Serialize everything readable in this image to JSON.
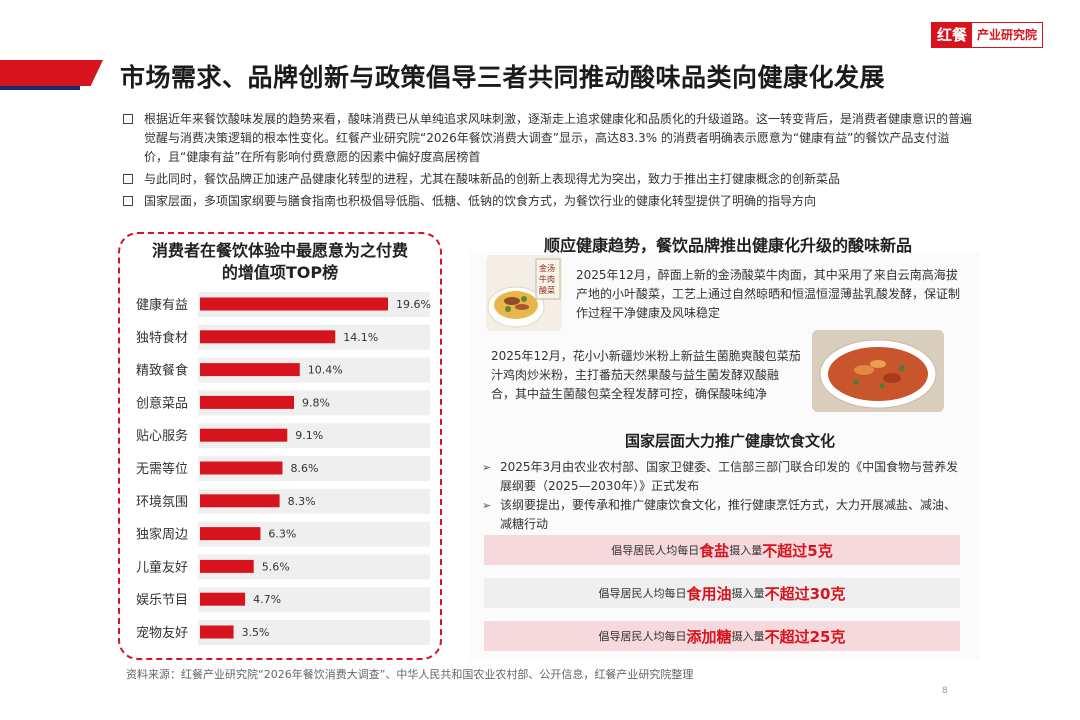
{
  "brand": {
    "logo_main": "红餐",
    "logo_sub": "产业研究院"
  },
  "page_title": "市场需求、品牌创新与政策倡导三者共同推动酸味品类向健康化发展",
  "bullets": [
    "根据近年来餐饮酸味发展的趋势来看，酸味消费已从单纯追求风味刺激，逐渐走上追求健康化和品质化的升级道路。这一转变背后，是消费者健康意识的普遍觉醒与消费决策逻辑的根本性变化。红餐产业研究院“2026年餐饮消费大调查”显示，高达83.3% 的消费者明确表示愿意为“健康有益”的餐饮产品支付溢价，且“健康有益”在所有影响付费意愿的因素中偏好度高居榜首",
    "与此同时，餐饮品牌正加速产品健康化转型的进程，尤其在酸味新品的创新上表现得尤为突出，致力于推出主打健康概念的创新菜品",
    "国家层面，多项国家纲要与膳食指南也积极倡导低脂、低糖、低钠的饮食方式，为餐饮行业的健康化转型提供了明确的指导方向"
  ],
  "chart_data": {
    "type": "bar",
    "orientation": "horizontal",
    "title": "消费者在餐饮体验中最愿意为之付费的增值项TOP榜",
    "title_line1": "消费者在餐饮体验中最愿意为之付费",
    "title_line2": "的增值项TOP榜",
    "categories": [
      "健康有益",
      "独特食材",
      "精致餐食",
      "创意菜品",
      "贴心服务",
      "无需等位",
      "环境氛围",
      "独家周边",
      "儿童友好",
      "娱乐节目",
      "宠物友好"
    ],
    "values": [
      19.6,
      14.1,
      10.4,
      9.8,
      9.1,
      8.6,
      8.3,
      6.3,
      5.6,
      4.7,
      3.5
    ],
    "value_labels": [
      "19.6%",
      "14.1%",
      "10.4%",
      "9.8%",
      "9.1%",
      "8.6%",
      "8.3%",
      "6.3%",
      "5.6%",
      "4.7%",
      "3.5%"
    ],
    "xlim": [
      0,
      22
    ],
    "bar_color": "#d7141e",
    "row_band_color": "#efefef",
    "legend": "none",
    "grid": false
  },
  "right": {
    "section1_title": "顺应健康趋势，餐饮品牌推出健康化升级的酸味新品",
    "item1_text": "2025年12月，醉面上新的金汤酸菜牛肉面，其中采用了来自云南高海拔产地的小叶酸菜，工艺上通过自然晾晒和恒温恒湿薄盐乳酸发酵，保证制作过程干净健康及风味稳定",
    "item1_photo_caption": "金汤牛肉酸菜面",
    "item2_text": "2025年12月，花小小新疆炒米粉上新益生菌脆爽酸包菜茄汁鸡肉炒米粉，主打番茄天然果酸与益生菌发酵双酸融合，其中益生菌酸包菜全程发酵可控，确保酸味纯净",
    "section2_title": "国家层面大力推广健康饮食文化",
    "policy_items": [
      "2025年3月由农业农村部、国家卫健委、工信部三部门联合印发的《中国食物与营养发展纲要（2025—2030年）》正式发布",
      "该纲要提出，要传承和推广健康饮食文化，推行健康烹饪方式，大力开展减盐、减油、减糖行动"
    ],
    "pills": [
      {
        "prefix": "倡导居民人均每日",
        "keyword": "食盐",
        "middle": "摄入量",
        "limit": "不超过5克"
      },
      {
        "prefix": "倡导居民人均每日",
        "keyword": "食用油",
        "middle": "摄入量",
        "limit": "不超过30克"
      },
      {
        "prefix": "倡导居民人均每日",
        "keyword": "添加糖",
        "middle": "摄入量",
        "limit": "不超过25克"
      }
    ]
  },
  "source": "资料来源：红餐产业研究院“2026年餐饮消费大调查”、中华人民共和国农业农村部、公开信息，红餐产业研究院整理",
  "page_number": "8",
  "colors": {
    "accent": "#d7141e",
    "navy": "#1a2b6a"
  },
  "icons": {
    "bullet": "square-bullet-icon",
    "arrow": "arrow-right-icon"
  }
}
